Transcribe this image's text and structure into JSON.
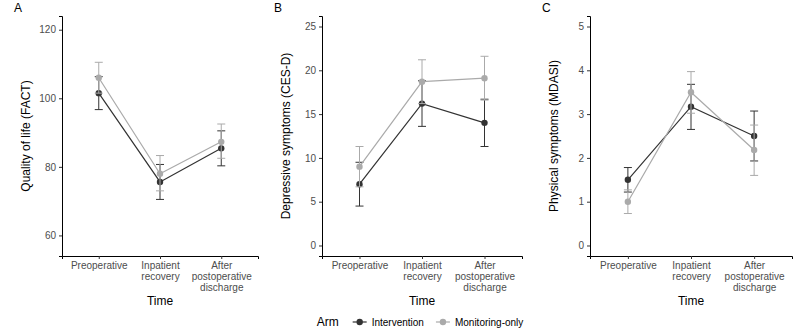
{
  "chart_data": [
    {
      "type": "line",
      "title": "A",
      "x_label": "Time",
      "y_label": "Quality of life (FACT)",
      "categories": [
        "Preoperative",
        "Inpatient\nrecovery",
        "After\npostoperative\ndischarge"
      ],
      "ylim": [
        54,
        124
      ],
      "yticks": [
        60,
        80,
        100,
        120
      ],
      "legend": "bottom",
      "legend_title": "Arm",
      "series": [
        {
          "name": "Intervention",
          "color": "#333333",
          "marker": "circle",
          "values": [
            101.5,
            75.6,
            85.4
          ],
          "lower": [
            96.7,
            70.5,
            80.3
          ],
          "upper": [
            106.3,
            80.7,
            90.5
          ]
        },
        {
          "name": "Monitoring-only",
          "color": "#aaaaaa",
          "marker": "circle",
          "values": [
            106,
            78,
            87.3
          ],
          "lower": [
            101.5,
            73,
            82.5
          ],
          "upper": [
            110.5,
            83.3,
            92.5
          ]
        }
      ]
    },
    {
      "type": "line",
      "title": "B",
      "x_label": "Time",
      "y_label": "Depressive symptoms (CES-D)",
      "categories": [
        "Preoperative",
        "Inpatient\nrecovery",
        "After\npostoperative\ndischarge"
      ],
      "ylim": [
        -1.2,
        26.2
      ],
      "yticks": [
        0,
        5,
        10,
        15,
        20,
        25
      ],
      "series": [
        {
          "name": "Intervention",
          "color": "#333333",
          "marker": "circle",
          "values": [
            7.0,
            16.2,
            14.0
          ],
          "lower": [
            4.5,
            13.6,
            11.3
          ],
          "upper": [
            9.5,
            18.8,
            16.7
          ]
        },
        {
          "name": "Monitoring-only",
          "color": "#aaaaaa",
          "marker": "circle",
          "values": [
            9.0,
            18.7,
            19.1
          ],
          "lower": [
            6.7,
            16.2,
            16.6
          ],
          "upper": [
            11.3,
            21.2,
            21.6
          ]
        }
      ]
    },
    {
      "type": "line",
      "title": "C",
      "x_label": "Time",
      "y_label": "Physical symptoms (MDASI)",
      "categories": [
        "Preoperative",
        "Inpatient\nrecovery",
        "After\npostoperative\ndischarge"
      ],
      "ylim": [
        -0.24,
        5.24
      ],
      "yticks": [
        0,
        1,
        2,
        3,
        4,
        5
      ],
      "series": [
        {
          "name": "Intervention",
          "color": "#333333",
          "marker": "circle",
          "values": [
            1.5,
            3.17,
            2.5
          ],
          "lower": [
            1.22,
            2.65,
            1.93
          ],
          "upper": [
            1.78,
            3.68,
            3.07
          ]
        },
        {
          "name": "Monitoring-only",
          "color": "#aaaaaa",
          "marker": "circle",
          "values": [
            1.0,
            3.5,
            2.18
          ],
          "lower": [
            0.73,
            3.02,
            1.6
          ],
          "upper": [
            1.27,
            3.97,
            2.75
          ]
        }
      ]
    }
  ]
}
